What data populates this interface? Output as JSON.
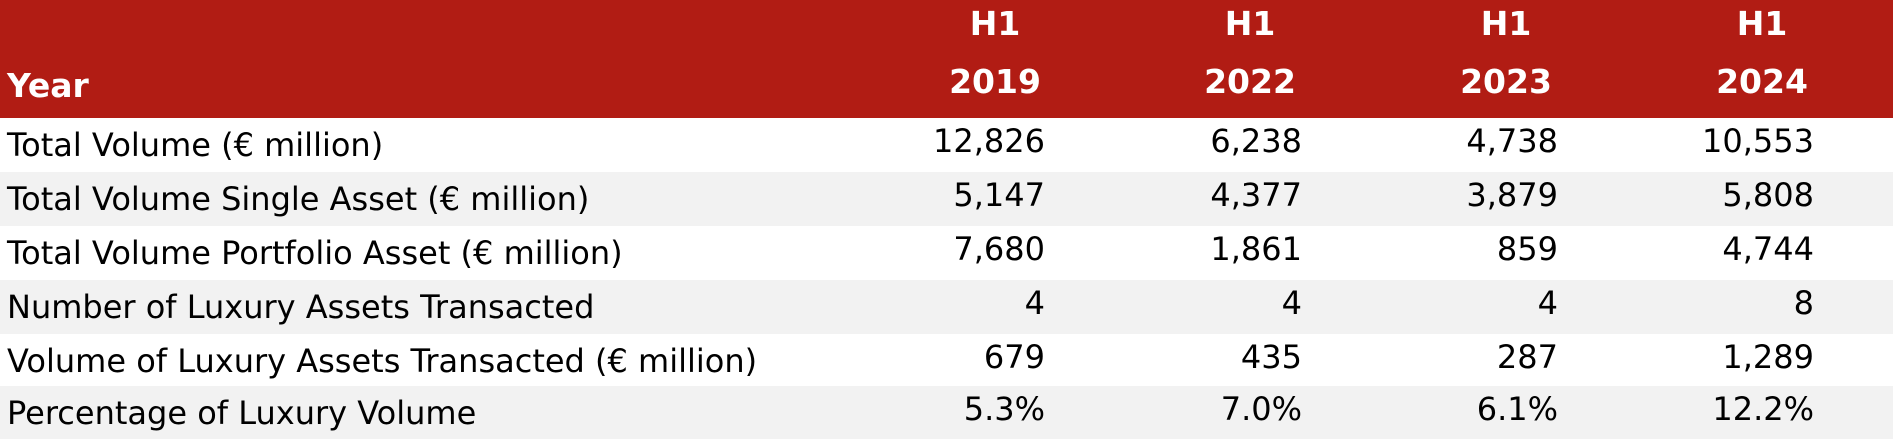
{
  "header": {
    "year_label": "Year",
    "periods": [
      {
        "line1": "H1",
        "line2": "2019"
      },
      {
        "line1": "H1",
        "line2": "2022"
      },
      {
        "line1": "H1",
        "line2": "2023"
      },
      {
        "line1": "H1",
        "line2": "2024"
      }
    ]
  },
  "rows": [
    {
      "label": "Total Volume (€ million)",
      "values": [
        "12,826",
        "6,238",
        "4,738",
        "10,553"
      ]
    },
    {
      "label": "Total Volume Single Asset (€ million)",
      "values": [
        "5,147",
        "4,377",
        "3,879",
        "5,808"
      ]
    },
    {
      "label": "Total Volume Portfolio Asset (€ million)",
      "values": [
        "7,680",
        "1,861",
        "859",
        "4,744"
      ]
    },
    {
      "label": "Number of Luxury Assets Transacted",
      "values": [
        "4",
        "4",
        "4",
        "8"
      ]
    },
    {
      "label": "Volume of Luxury Assets Transacted (€ million)",
      "values": [
        "679",
        "435",
        "287",
        "1,289"
      ]
    },
    {
      "label": "Percentage of Luxury Volume",
      "values": [
        "5.3%",
        "7.0%",
        "6.1%",
        "12.2%"
      ]
    }
  ],
  "colors": {
    "header_bg": "#b11c14",
    "header_text": "#ffffff",
    "alt_row_bg": "#f2f2f2"
  }
}
